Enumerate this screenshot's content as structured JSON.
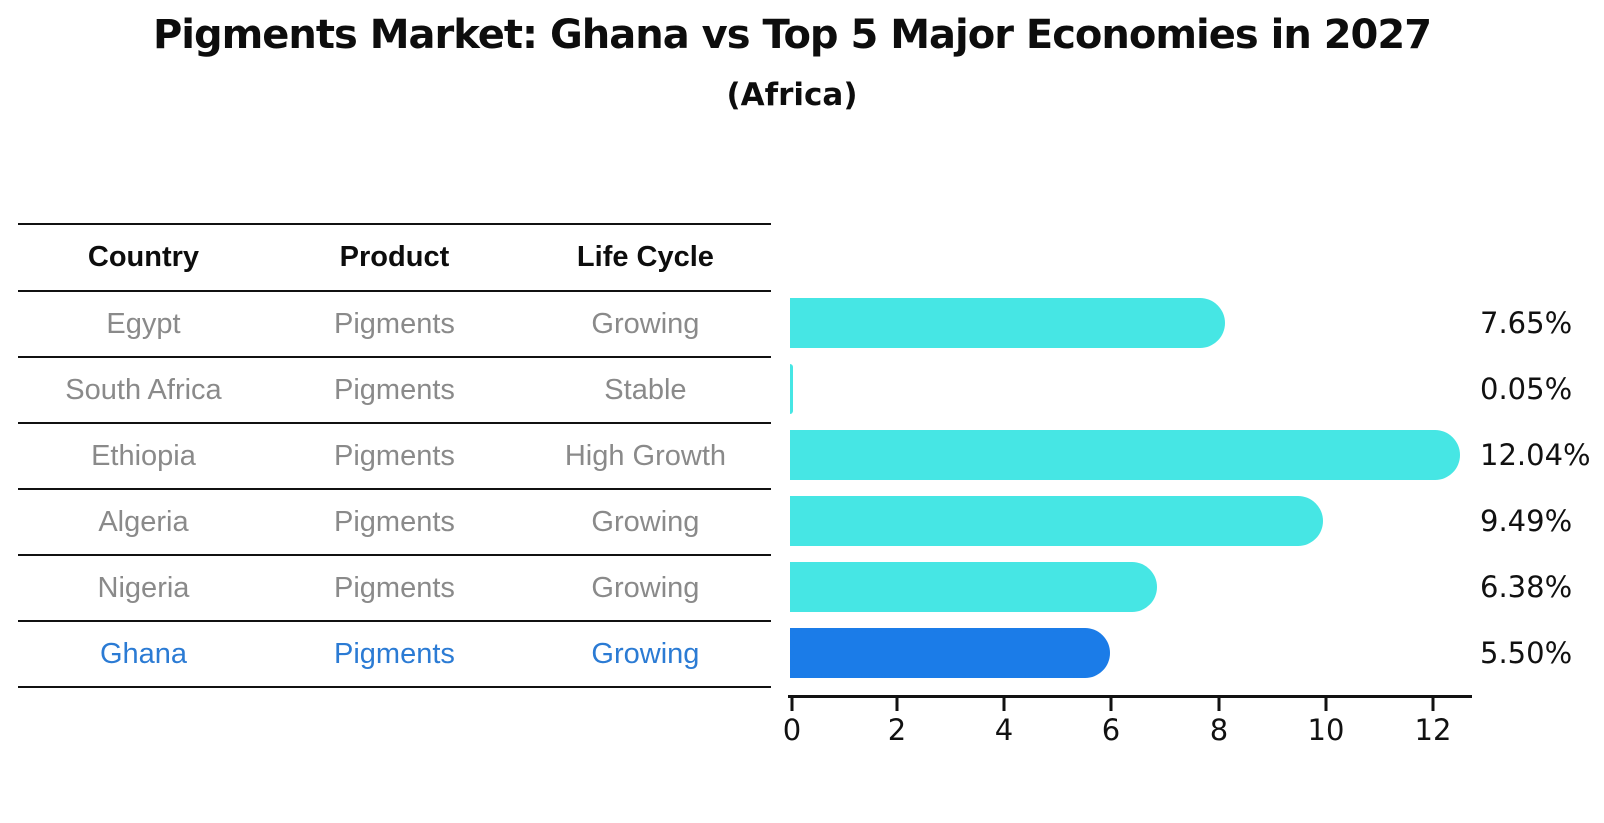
{
  "chart_data": {
    "type": "bar",
    "orientation": "horizontal",
    "title": "Pigments Market: Ghana vs Top 5 Major Economies in 2027",
    "subtitle": "(Africa)",
    "categories": [
      "Egypt",
      "South Africa",
      "Ethiopia",
      "Algeria",
      "Nigeria",
      "Ghana"
    ],
    "values": [
      7.65,
      0.05,
      12.04,
      9.49,
      6.38,
      5.5
    ],
    "value_labels": [
      "7.65%",
      "0.05%",
      "12.04%",
      "9.49%",
      "6.38%",
      "5.50%"
    ],
    "xlabel": "",
    "ylabel": "",
    "xlim": [
      0,
      12.75
    ],
    "x_ticks": [
      0,
      2,
      4,
      6,
      8,
      10,
      12
    ],
    "grid": "off",
    "legend": "none",
    "bar_color": "#46e6e4",
    "highlight_color": "#1b7ce8",
    "highlight_index": 5,
    "highlight_style": "dotted-outline"
  },
  "table": {
    "headers": [
      "Country",
      "Product",
      "Life Cycle"
    ],
    "rows": [
      {
        "country": "Egypt",
        "product": "Pigments",
        "life_cycle": "Growing",
        "highlighted": false
      },
      {
        "country": "South Africa",
        "product": "Pigments",
        "life_cycle": "Stable",
        "highlighted": false
      },
      {
        "country": "Ethiopia",
        "product": "Pigments",
        "life_cycle": "High Growth",
        "highlighted": false
      },
      {
        "country": "Algeria",
        "product": "Pigments",
        "life_cycle": "Growing",
        "highlighted": false
      },
      {
        "country": "Nigeria",
        "product": "Pigments",
        "life_cycle": "Growing",
        "highlighted": false
      },
      {
        "country": "Ghana",
        "product": "Pigments",
        "life_cycle": "Growing",
        "highlighted": true
      }
    ],
    "text_color_gray": "#8a8a8a",
    "highlight_text_color": "#2b7bd4"
  }
}
